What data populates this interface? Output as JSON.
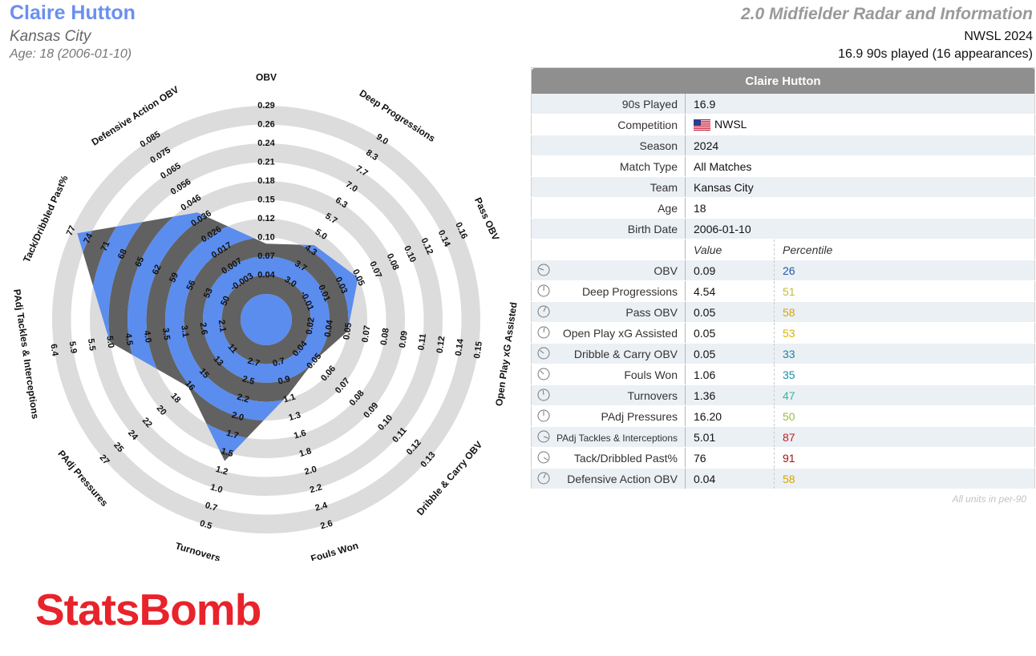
{
  "header": {
    "player_name": "Claire Hutton",
    "team": "Kansas City",
    "age_line": "Age: 18 (2006-01-10)",
    "radar_title": "2.0 Midfielder Radar and Information",
    "competition_line": "NWSL 2024",
    "played_line": "16.9 90s played (16 appearances)"
  },
  "table": {
    "title": "Claire Hutton",
    "info_rows": [
      {
        "label": "90s Played",
        "value": "16.9"
      },
      {
        "label": "Competition",
        "value": "NWSL"
      },
      {
        "label": "Season",
        "value": "2024"
      },
      {
        "label": "Match Type",
        "value": "All Matches"
      },
      {
        "label": "Team",
        "value": "Kansas City"
      },
      {
        "label": "Age",
        "value": "18"
      },
      {
        "label": "Birth Date",
        "value": "2006-01-10"
      }
    ],
    "value_header": "Value",
    "percentile_header": "Percentile",
    "metric_rows": [
      {
        "label": "OBV",
        "value": "0.09",
        "percentile": "26",
        "color": "#1f5aa6"
      },
      {
        "label": "Deep Progressions",
        "value": "4.54",
        "percentile": "51",
        "color": "#bdbd3a"
      },
      {
        "label": "Pass OBV",
        "value": "0.05",
        "percentile": "58",
        "color": "#d9a400"
      },
      {
        "label": "Open Play xG Assisted",
        "value": "0.05",
        "percentile": "53",
        "color": "#d9b400"
      },
      {
        "label": "Dribble & Carry OBV",
        "value": "0.05",
        "percentile": "33",
        "color": "#1e7fa0"
      },
      {
        "label": "Fouls Won",
        "value": "1.06",
        "percentile": "35",
        "color": "#1e8aa8"
      },
      {
        "label": "Turnovers",
        "value": "1.36",
        "percentile": "47",
        "color": "#3bb3a0"
      },
      {
        "label": "PAdj Pressures",
        "value": "16.20",
        "percentile": "50",
        "color": "#9cbb4a"
      },
      {
        "label": "PAdj Tackles & Interceptions",
        "value": "5.01",
        "percentile": "87",
        "color": "#b8241e"
      },
      {
        "label": "Tack/Dribbled Past%",
        "value": "76",
        "percentile": "91",
        "color": "#a01515"
      },
      {
        "label": "Defensive Action OBV",
        "value": "0.04",
        "percentile": "58",
        "color": "#d9a400"
      }
    ],
    "units_note": "All units in per-90"
  },
  "logo_text": "StatsBomb",
  "colors": {
    "accent_blue": "#6b8ff0",
    "radar_fill": "#5b8def",
    "radar_band_dark": "#616161",
    "ring_gray": "#dcdcdc",
    "logo_red": "#e8232b"
  },
  "chart_data": {
    "type": "radar",
    "axes": [
      {
        "label": "OBV",
        "ticks": [
          "0.04",
          "0.07",
          "0.10",
          "0.12",
          "0.15",
          "0.18",
          "0.21",
          "0.24",
          "0.26",
          "0.29"
        ],
        "value": 0.09
      },
      {
        "label": "Deep Progressions",
        "ticks": [
          "3.0",
          "3.7",
          "4.3",
          "5.0",
          "5.7",
          "6.3",
          "7.0",
          "7.7",
          "8.3",
          "9.0"
        ],
        "value": 4.54
      },
      {
        "label": "Pass OBV",
        "ticks": [
          "-0.01",
          "0.01",
          "0.03",
          "0.05",
          "0.07",
          "0.08",
          "0.10",
          "0.12",
          "0.14",
          "0.16"
        ],
        "value": 0.05
      },
      {
        "label": "Open Play xG Assisted",
        "ticks": [
          "0.02",
          "0.04",
          "0.05",
          "0.07",
          "0.08",
          "0.09",
          "0.11",
          "0.12",
          "0.14",
          "0.15"
        ],
        "value": 0.05
      },
      {
        "label": "Dribble & Carry OBV",
        "ticks": [
          "0.04",
          "0.05",
          "0.06",
          "0.07",
          "0.08",
          "0.09",
          "0.10",
          "0.11",
          "0.12",
          "0.13"
        ],
        "value": 0.05
      },
      {
        "label": "Fouls Won",
        "ticks": [
          "0.7",
          "0.9",
          "1.1",
          "1.3",
          "1.6",
          "1.8",
          "2.0",
          "2.2",
          "2.4",
          "2.6"
        ],
        "value": 1.06
      },
      {
        "label": "Turnovers",
        "ticks": [
          "2.7",
          "2.5",
          "2.2",
          "2.0",
          "1.7",
          "1.5",
          "1.2",
          "1.0",
          "0.7",
          "0.5"
        ],
        "value": 1.36
      },
      {
        "label": "PAdj Pressures",
        "ticks": [
          "11",
          "13",
          "15",
          "16",
          "18",
          "20",
          "22",
          "24",
          "25",
          "27"
        ],
        "value": 16.2
      },
      {
        "label": "PAdj Tackles & Interceptions",
        "ticks": [
          "2.1",
          "2.6",
          "3.1",
          "3.5",
          "4.0",
          "4.5",
          "5.0",
          "5.5",
          "5.9",
          "6.4"
        ],
        "value": 5.01
      },
      {
        "label": "Tack/Dribbled Past%",
        "ticks": [
          "50",
          "53",
          "56",
          "59",
          "62",
          "65",
          "68",
          "71",
          "74",
          "77"
        ],
        "value": 76
      },
      {
        "label": "Defensive Action OBV",
        "ticks": [
          "-0.003",
          "0.007",
          "0.017",
          "0.026",
          "0.036",
          "0.046",
          "0.056",
          "0.065",
          "0.075",
          "0.085"
        ],
        "value": 0.04
      }
    ]
  }
}
